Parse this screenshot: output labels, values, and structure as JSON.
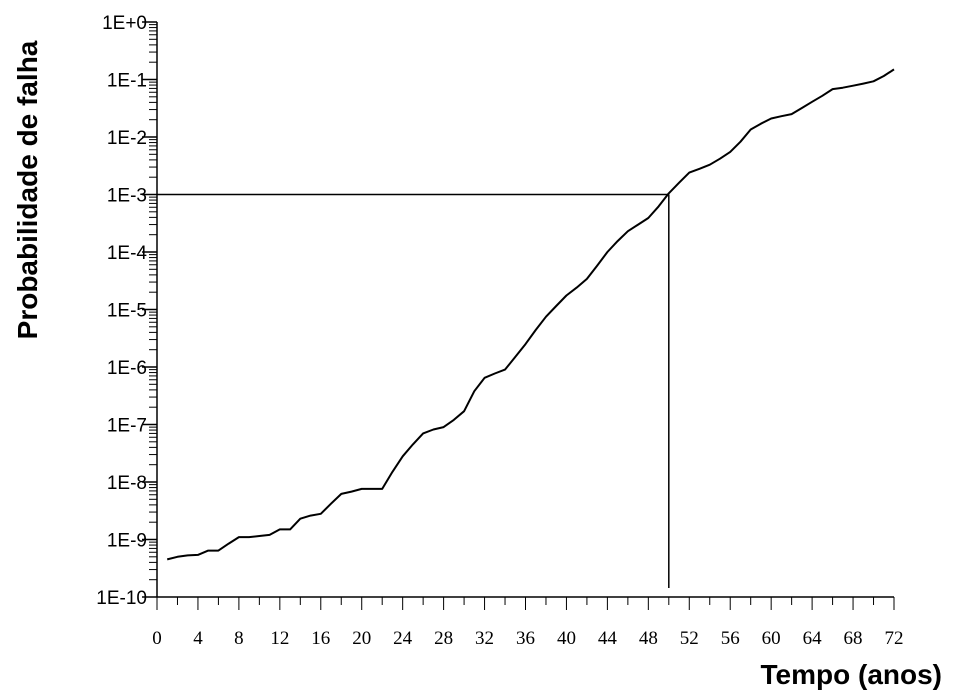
{
  "chart_data": {
    "type": "line",
    "title": "",
    "xlabel": "Tempo (anos)",
    "ylabel": "Probabilidade de falha",
    "xlim": [
      0,
      72
    ],
    "ylim": [
      1e-10,
      1
    ],
    "yscale": "log",
    "grid": false,
    "x_ticks": [
      "0",
      "4",
      "8",
      "12",
      "16",
      "20",
      "24",
      "28",
      "32",
      "36",
      "40",
      "44",
      "48",
      "52",
      "56",
      "60",
      "64",
      "68",
      "72"
    ],
    "y_ticks": [
      "1E+0",
      "1E-1",
      "1E-2",
      "1E-3",
      "1E-4",
      "1E-5",
      "1E-6",
      "1E-7",
      "1E-8",
      "1E-9",
      "1E-10"
    ],
    "series": [
      {
        "x": [
          1,
          2,
          3,
          4,
          5,
          6,
          7,
          8,
          9,
          10,
          11,
          12,
          13,
          14,
          15,
          16,
          17,
          18,
          19,
          20,
          21,
          22,
          23,
          24,
          25,
          26,
          27,
          28,
          29,
          30,
          31,
          32,
          33,
          34,
          35,
          36,
          37,
          38,
          39,
          40,
          41,
          42,
          43,
          44,
          45,
          46,
          47,
          48,
          49,
          50,
          51,
          52,
          53,
          54,
          55,
          56,
          57,
          58,
          59,
          60,
          61,
          62,
          63,
          64,
          65,
          66,
          67,
          68,
          69,
          70,
          71,
          72
        ],
        "y": [
          4.5e-10,
          5e-10,
          5.3e-10,
          5.4e-10,
          6.4e-10,
          6.4e-10,
          8.5e-10,
          1.1e-09,
          1.1e-09,
          1.15e-09,
          1.2e-09,
          1.5e-09,
          1.5e-09,
          2.3e-09,
          2.6e-09,
          2.8e-09,
          4.2e-09,
          6.2e-09,
          6.8e-09,
          7.6e-09,
          7.6e-09,
          7.6e-09,
          1.5e-08,
          2.8e-08,
          4.5e-08,
          7e-08,
          8.2e-08,
          9e-08,
          1.2e-07,
          1.7e-07,
          3.8e-07,
          6.5e-07,
          7.7e-07,
          9e-07,
          1.5e-06,
          2.5e-06,
          4.4e-06,
          7.5e-06,
          1.15e-05,
          1.75e-05,
          2.4e-05,
          3.4e-05,
          5.8e-05,
          0.0001,
          0.000155,
          0.00023,
          0.0003,
          0.00039,
          0.00062,
          0.00105,
          0.0016,
          0.0024,
          0.0028,
          0.0033,
          0.0042,
          0.0055,
          0.0083,
          0.0135,
          0.017,
          0.021,
          0.023,
          0.025,
          0.032,
          0.041,
          0.052,
          0.068,
          0.072,
          0.078,
          0.085,
          0.093,
          0.115,
          0.15
        ]
      }
    ],
    "annotations": [
      {
        "type": "reference-lines",
        "x": 50,
        "y": 0.001
      }
    ]
  }
}
